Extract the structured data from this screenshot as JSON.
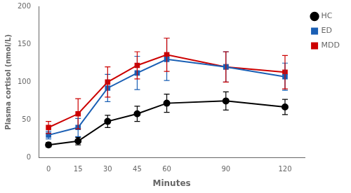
{
  "chart_data": {
    "type": "line",
    "x": [
      0,
      15,
      30,
      45,
      60,
      90,
      120
    ],
    "xlabel": "Minutes",
    "ylabel": "Plasma cortisol (nmol/L)",
    "xlim": [
      -5,
      130
    ],
    "xticks": [
      0,
      15,
      30,
      45,
      60,
      90,
      120
    ],
    "ylim": [
      0,
      200
    ],
    "yticks": [
      0,
      50,
      100,
      150,
      200
    ],
    "grid": false,
    "legend": "right",
    "series": [
      {
        "name": "HC",
        "color": "#000000",
        "marker": "circle",
        "values": [
          17,
          22,
          48,
          58,
          72,
          75,
          67
        ],
        "error": [
          3,
          5,
          8,
          10,
          12,
          12,
          10
        ]
      },
      {
        "name": "ED",
        "color": "#1a5fb4",
        "marker": "square",
        "values": [
          30,
          40,
          92,
          112,
          130,
          120,
          107
        ],
        "error": [
          5,
          12,
          18,
          22,
          28,
          20,
          18
        ]
      },
      {
        "name": "MDD",
        "color": "#cc0000",
        "marker": "square",
        "values": [
          40,
          58,
          100,
          122,
          136,
          120,
          113
        ],
        "error": [
          8,
          20,
          20,
          18,
          22,
          20,
          22
        ]
      }
    ]
  }
}
